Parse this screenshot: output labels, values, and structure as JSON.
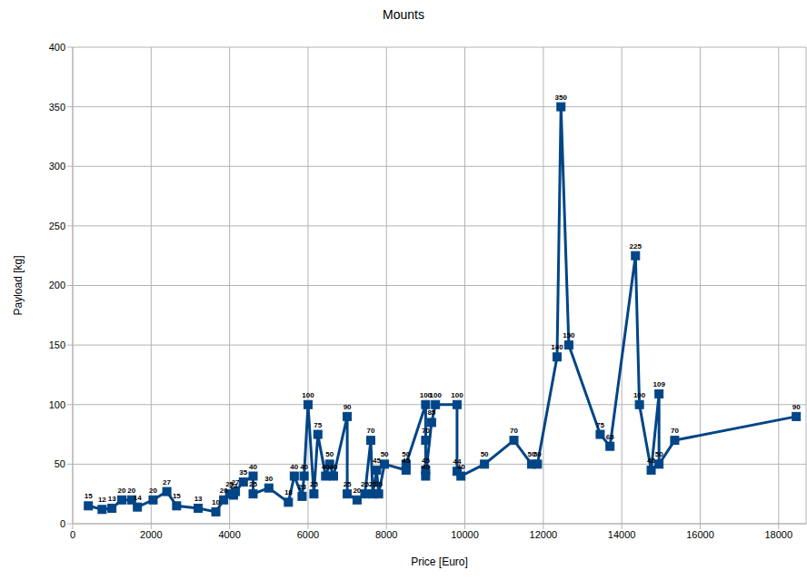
{
  "chart_data": {
    "type": "line",
    "title": "Mounts",
    "x_label": "Price [Euro]",
    "y_label": "Payload [kg]",
    "x": [
      400,
      750,
      1000,
      1250,
      1500,
      1650,
      2050,
      2400,
      2650,
      3200,
      3650,
      3850,
      4000,
      4100,
      4150,
      4350,
      4600,
      4600,
      5000,
      5500,
      5650,
      5850,
      5900,
      6000,
      6150,
      6250,
      6450,
      6550,
      6650,
      7000,
      7000,
      7250,
      7450,
      7600,
      7650,
      7750,
      7800,
      7950,
      8500,
      8500,
      9000,
      9000,
      9000,
      9000,
      9150,
      9250,
      9800,
      9800,
      9900,
      10500,
      11250,
      11700,
      11850,
      12350,
      12450,
      12650,
      13450,
      13700,
      14350,
      14450,
      14750,
      14950,
      14950,
      15350,
      18450
    ],
    "values": [
      15,
      12,
      13,
      20,
      20,
      14,
      20,
      27,
      15,
      13,
      10,
      20,
      25,
      24,
      27,
      35,
      40,
      25,
      30,
      18,
      40,
      23,
      40,
      100,
      25,
      75,
      40,
      50,
      40,
      90,
      25,
      20,
      25,
      70,
      25,
      45,
      25,
      50,
      45,
      50,
      100,
      70,
      45,
      40,
      85,
      100,
      100,
      44,
      40,
      50,
      70,
      50,
      50,
      140,
      350,
      150,
      75,
      65,
      225,
      100,
      45,
      109,
      50,
      70,
      90
    ],
    "color": "#004586",
    "marker": "square",
    "xlim": [
      0,
      18700
    ],
    "xticks": [
      0,
      2000,
      4000,
      6000,
      8000,
      10000,
      12000,
      14000,
      16000,
      18000
    ],
    "ylim": [
      0,
      400
    ],
    "yticks": [
      0,
      50,
      100,
      150,
      200,
      250,
      300,
      350,
      400
    ],
    "grid": true,
    "data_labels": true
  }
}
